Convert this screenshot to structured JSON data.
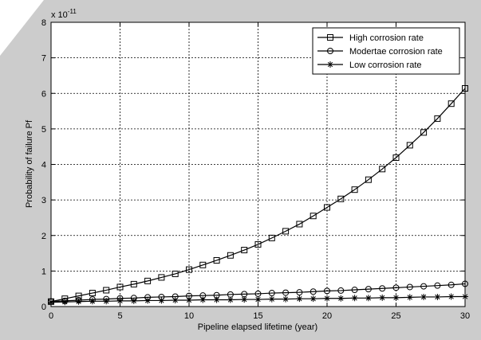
{
  "chart_data": {
    "type": "line",
    "title": "",
    "xlabel": "Pipeline elapsed lifetime (year)",
    "ylabel": "Probability of failure Pf",
    "xlim": [
      0,
      30
    ],
    "ylim": [
      0,
      8
    ],
    "x_ticks": [
      0,
      5,
      10,
      15,
      20,
      25,
      30
    ],
    "y_ticks": [
      0,
      1,
      2,
      3,
      4,
      5,
      6,
      7,
      8
    ],
    "y_multiplier_base": "x 10",
    "y_multiplier_exponent": "-11",
    "grid": true,
    "legend_position": "top-right",
    "x": [
      0,
      1,
      2,
      3,
      4,
      5,
      6,
      7,
      8,
      9,
      10,
      11,
      12,
      13,
      14,
      15,
      16,
      17,
      18,
      19,
      20,
      21,
      22,
      23,
      24,
      25,
      26,
      27,
      28,
      29,
      30
    ],
    "series": [
      {
        "name": "High corrosion rate",
        "marker": "square",
        "values": [
          0.14,
          0.22,
          0.3,
          0.38,
          0.46,
          0.55,
          0.63,
          0.72,
          0.82,
          0.92,
          1.04,
          1.17,
          1.3,
          1.44,
          1.59,
          1.75,
          1.93,
          2.12,
          2.32,
          2.55,
          2.79,
          3.03,
          3.29,
          3.57,
          3.87,
          4.19,
          4.54,
          4.9,
          5.29,
          5.71,
          6.14
        ]
      },
      {
        "name": "Modertae corrosion rate",
        "marker": "circle",
        "values": [
          0.14,
          0.16,
          0.18,
          0.2,
          0.21,
          0.23,
          0.24,
          0.26,
          0.27,
          0.28,
          0.3,
          0.31,
          0.32,
          0.34,
          0.35,
          0.36,
          0.38,
          0.39,
          0.4,
          0.42,
          0.44,
          0.45,
          0.47,
          0.49,
          0.51,
          0.53,
          0.55,
          0.57,
          0.59,
          0.61,
          0.64
        ]
      },
      {
        "name": "Low corrosion rate",
        "marker": "star",
        "values": [
          0.12,
          0.13,
          0.14,
          0.15,
          0.15,
          0.16,
          0.16,
          0.17,
          0.17,
          0.18,
          0.18,
          0.19,
          0.19,
          0.19,
          0.2,
          0.2,
          0.21,
          0.21,
          0.22,
          0.22,
          0.23,
          0.23,
          0.24,
          0.24,
          0.25,
          0.25,
          0.26,
          0.27,
          0.27,
          0.28,
          0.28
        ]
      }
    ]
  }
}
